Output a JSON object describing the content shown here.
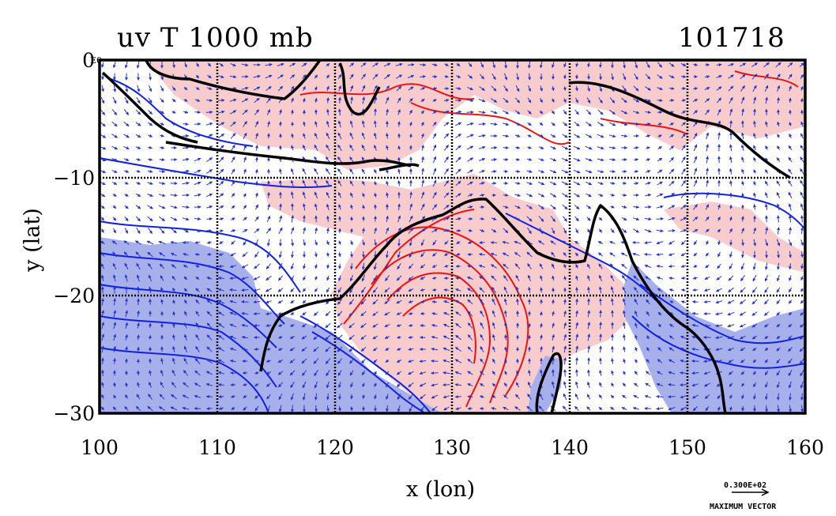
{
  "title_left": "uv T 1000 mb",
  "title_right": "101718",
  "x_axis": {
    "label": "x (lon)",
    "ticks": [
      "100",
      "110",
      "120",
      "130",
      "140",
      "150",
      "160"
    ],
    "range": [
      100,
      160
    ]
  },
  "y_axis": {
    "label": "y (lat)",
    "ticks": [
      "0",
      "−10",
      "−20",
      "−30"
    ],
    "range": [
      -30,
      0
    ]
  },
  "corner_label": "E0",
  "vector_legend": {
    "value": "0.300E+02",
    "label": "MAXIMUM VECTOR"
  },
  "colors": {
    "warm_fill": "#f8cccc",
    "cold_fill": "#a8b0ec",
    "warm_contour": "#ee1111",
    "cold_contour": "#1122dd",
    "vector": "#2233cc",
    "coast": "#000000"
  },
  "grid": true
}
